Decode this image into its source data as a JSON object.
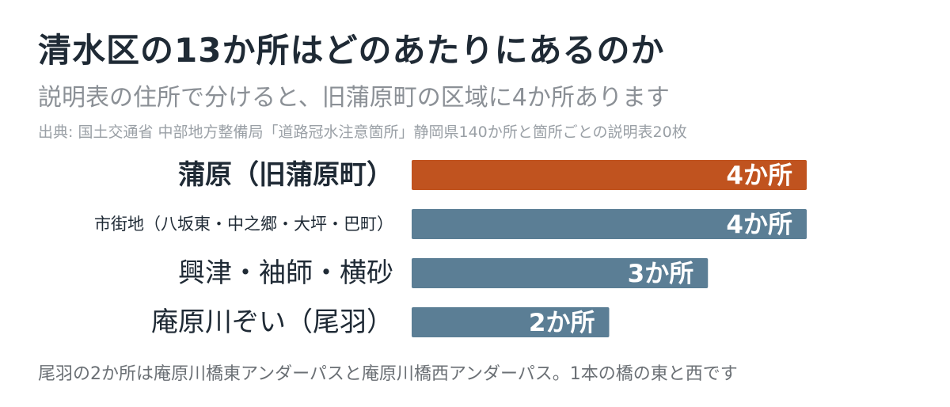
{
  "header": {
    "title": "清水区の13か所はどのあたりにあるのか",
    "subtitle": "説明表の住所で分けると、旧蒲原町の区域に4か所あります",
    "source": "出典: 国土交通省 中部地方整備局「道路冠水注意箇所」静岡県140か所と箇所ごとの説明表20枚"
  },
  "footnote": "尾羽の2か所は庵原川橋東アンダーパスと庵原川橋西アンダーパス。1本の橋の東と西です",
  "colors": {
    "highlight": "#c0531f",
    "bar": "#5b7e95",
    "bar_label": "#ffffff",
    "category_text": "#1f2a35"
  },
  "chart_data": {
    "type": "bar",
    "orientation": "horizontal",
    "unit": "か所",
    "categories": [
      "蒲原（旧蒲原町）",
      "市街地（八坂東・中之郷・大坪・巴町）",
      "興津・袖師・横砂",
      "庵原川ぞい（尾羽）"
    ],
    "values": [
      4,
      4,
      3,
      2
    ],
    "value_labels": [
      "4か所",
      "4か所",
      "3か所",
      "2か所"
    ],
    "highlight_index": 0,
    "xlim": [
      0,
      4
    ],
    "grid": false,
    "legend": "none"
  }
}
